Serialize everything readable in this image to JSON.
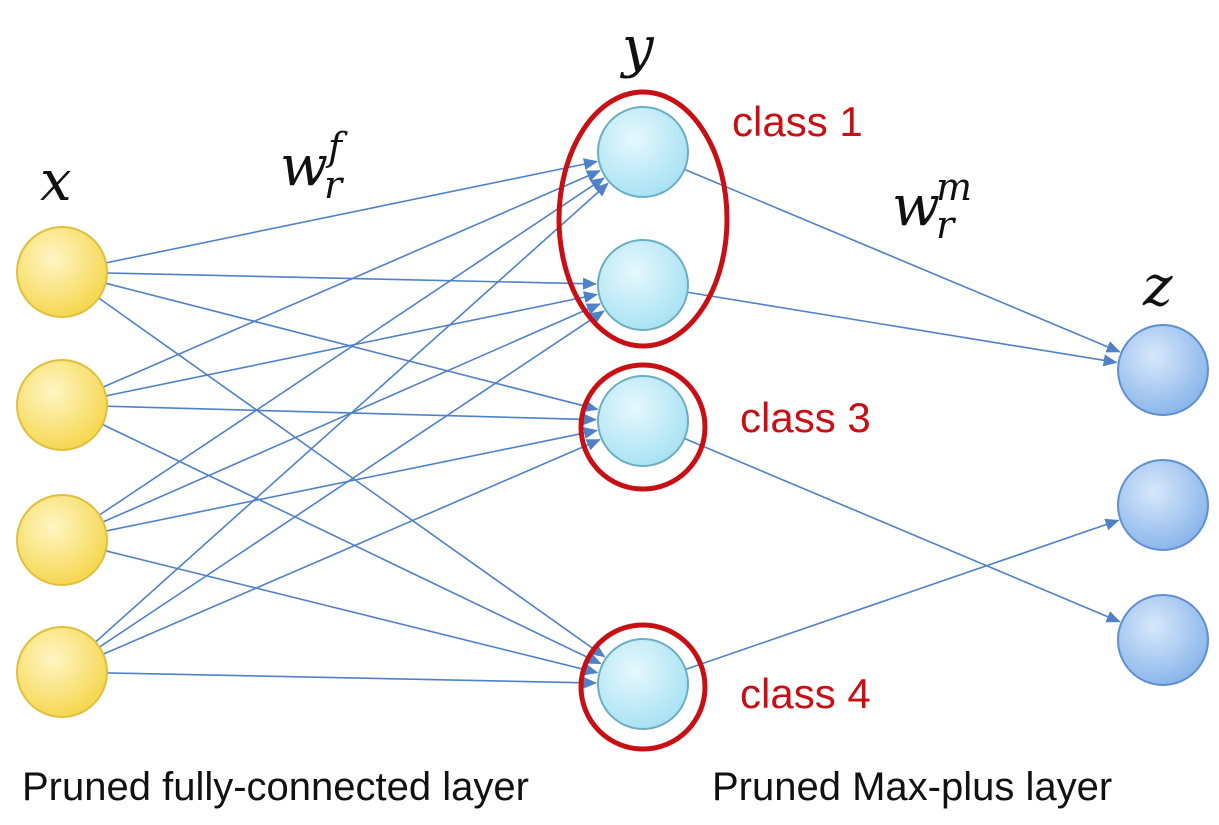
{
  "variables": {
    "input": "x",
    "hidden": "y",
    "output": "z"
  },
  "weights": {
    "fc": {
      "base": "w",
      "sub": "r",
      "sup": "f"
    },
    "maxplus": {
      "base": "w",
      "sub": "r",
      "sup": "m"
    }
  },
  "classes": [
    "class 1",
    "class 3",
    "class 4"
  ],
  "captions": {
    "left": "Pruned fully-connected layer",
    "right": "Pruned Max-plus layer"
  },
  "colors": {
    "edge": "#4f81c7",
    "class_ring": "#c80f14",
    "input_node": "#f7dc5c",
    "hidden_node": "#aee6f5",
    "output_node": "#8cb8ec"
  },
  "layers": {
    "input_nodes": 4,
    "hidden_nodes": 4,
    "output_nodes": 3
  }
}
